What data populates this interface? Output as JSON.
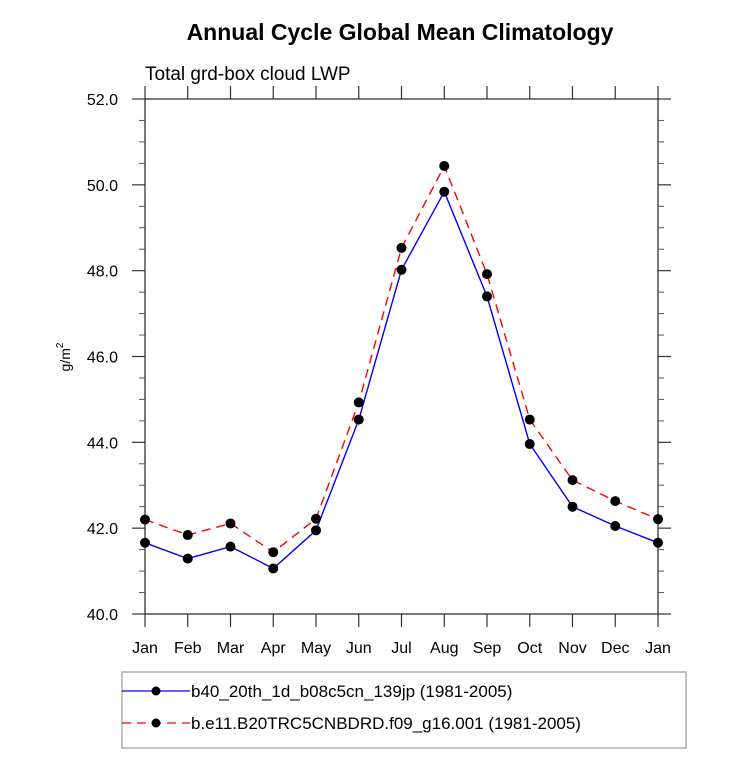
{
  "chart_data": {
    "type": "line",
    "title": "Annual Cycle Global Mean Climatology",
    "subtitle": "Total grd-box cloud LWP",
    "xlabel": "",
    "ylabel": "g/m",
    "ylabel_superscript": "2",
    "categories": [
      "Jan",
      "Feb",
      "Mar",
      "Apr",
      "May",
      "Jun",
      "Jul",
      "Aug",
      "Sep",
      "Oct",
      "Nov",
      "Dec",
      "Jan"
    ],
    "ylim": [
      40.0,
      52.0
    ],
    "yticks": [
      "40.0",
      "42.0",
      "44.0",
      "46.0",
      "48.0",
      "50.0",
      "52.0"
    ],
    "ytick_values": [
      40,
      42,
      44,
      46,
      48,
      50,
      52
    ],
    "minor_tick_step": 0.5,
    "grid": false,
    "legend_position": "bottom",
    "series": [
      {
        "name": "b40_20th_1d_b08c5cn_139jp (1981-2005)",
        "color": "#0000ff",
        "dash": "solid",
        "values": [
          41.66,
          41.29,
          41.57,
          41.06,
          41.95,
          44.53,
          48.02,
          49.84,
          47.4,
          43.96,
          42.5,
          42.05,
          41.66
        ]
      },
      {
        "name": "b.e11.B20TRC5CNBDRD.f09_g16.001 (1981-2005)",
        "color": "#ff0000",
        "dash": "dashed",
        "values": [
          42.2,
          41.84,
          42.11,
          41.44,
          42.22,
          44.93,
          48.53,
          50.44,
          47.92,
          44.53,
          43.12,
          42.63,
          42.21
        ]
      }
    ]
  }
}
